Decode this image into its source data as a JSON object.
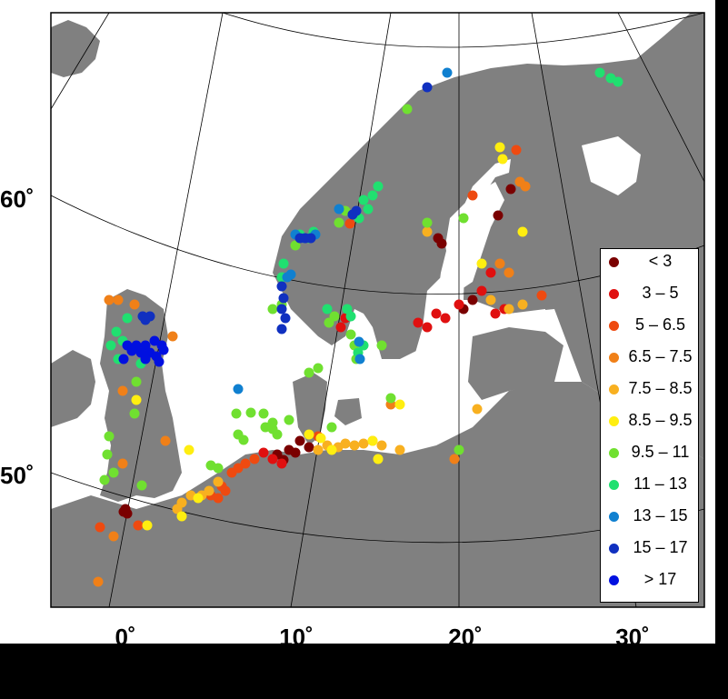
{
  "map": {
    "lat_labels": [
      "60˚",
      "50˚"
    ],
    "lon_labels": [
      "0˚",
      "10˚",
      "20˚",
      "30˚"
    ],
    "colors": {
      "land": "#808080",
      "sea": "#ffffff",
      "frame": "#000000",
      "grid": "#000000"
    }
  },
  "legend": {
    "items": [
      {
        "label": "< 3",
        "color": "#7a0000"
      },
      {
        "label": "3 – 5",
        "color": "#e01010"
      },
      {
        "label": "5 – 6.5",
        "color": "#ee4a10"
      },
      {
        "label": "6.5 – 7.5",
        "color": "#f08018"
      },
      {
        "label": "7.5 – 8.5",
        "color": "#f8b020"
      },
      {
        "label": "8.5 – 9.5",
        "color": "#ffee10"
      },
      {
        "label": "9.5 – 11",
        "color": "#70e030"
      },
      {
        "label": "11 – 13",
        "color": "#20e070"
      },
      {
        "label": "13 – 15",
        "color": "#1080d0"
      },
      {
        "label": "15 – 17",
        "color": "#1030c0"
      },
      {
        "label": "> 17",
        "color": "#0010e0"
      }
    ]
  }
}
